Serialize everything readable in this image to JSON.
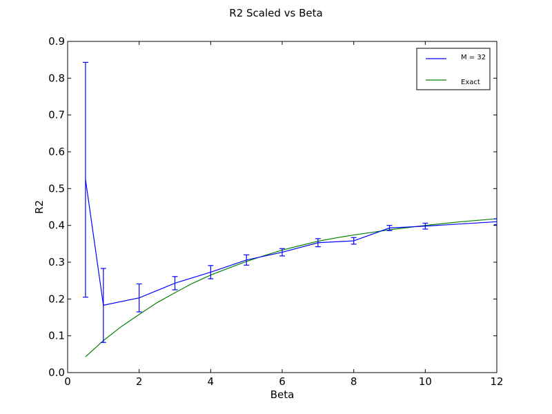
{
  "chart_data": {
    "type": "line",
    "title": "R2 Scaled vs Beta",
    "xlabel": "Beta",
    "ylabel": "R2",
    "xlim": [
      0,
      12
    ],
    "ylim": [
      0.0,
      0.9
    ],
    "xticks": [
      "0",
      "2",
      "4",
      "6",
      "8",
      "10",
      "12"
    ],
    "yticks": [
      "0.0",
      "0.1",
      "0.2",
      "0.3",
      "0.4",
      "0.5",
      "0.6",
      "0.7",
      "0.8",
      "0.9"
    ],
    "grid": false,
    "legend_position": "top-right",
    "series": [
      {
        "name": "M = 32",
        "color": "#0000ff",
        "x": [
          0.5,
          1,
          2,
          3,
          4,
          5,
          6,
          7,
          8,
          9,
          10,
          12
        ],
        "y": [
          0.525,
          0.183,
          0.203,
          0.243,
          0.273,
          0.306,
          0.327,
          0.353,
          0.358,
          0.393,
          0.398,
          0.41
        ],
        "err_low": [
          0.205,
          0.082,
          0.165,
          0.225,
          0.255,
          0.292,
          0.317,
          0.342,
          0.349,
          0.386,
          0.39,
          0.402
        ],
        "err_high": [
          0.843,
          0.283,
          0.241,
          0.261,
          0.291,
          0.32,
          0.337,
          0.364,
          0.367,
          0.4,
          0.406,
          0.418
        ]
      },
      {
        "name": "Exact",
        "color": "#008000",
        "x": [
          0.5,
          1,
          1.5,
          2,
          2.5,
          3,
          3.5,
          4,
          4.5,
          5,
          5.5,
          6,
          6.5,
          7,
          7.5,
          8,
          8.5,
          9,
          9.5,
          10,
          10.5,
          11,
          11.5,
          12
        ],
        "y": [
          0.043,
          0.087,
          0.125,
          0.158,
          0.19,
          0.217,
          0.243,
          0.265,
          0.284,
          0.302,
          0.318,
          0.333,
          0.345,
          0.357,
          0.366,
          0.374,
          0.381,
          0.388,
          0.394,
          0.4,
          0.405,
          0.41,
          0.414,
          0.418
        ]
      }
    ]
  }
}
